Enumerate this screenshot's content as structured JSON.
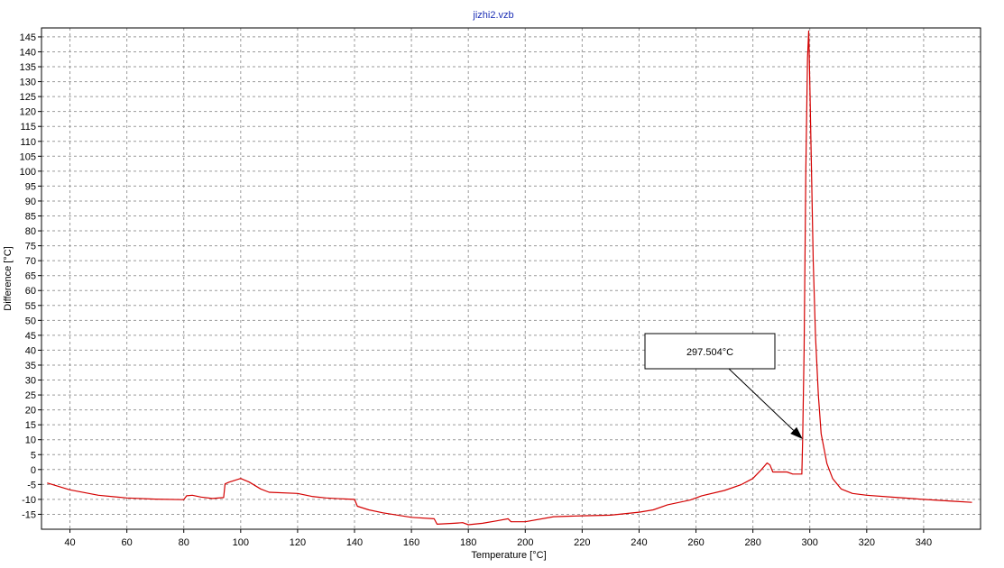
{
  "chart_data": {
    "type": "line",
    "title": "jizhi2.vzb",
    "xlabel": "Temperature [°C]",
    "ylabel": "Difference [°C]",
    "xlim": [
      30,
      360
    ],
    "ylim": [
      -20,
      148
    ],
    "x_ticks": [
      40,
      60,
      80,
      100,
      120,
      140,
      160,
      180,
      200,
      220,
      240,
      260,
      280,
      300,
      320,
      340
    ],
    "y_ticks": [
      -15,
      -10,
      -5,
      0,
      5,
      10,
      15,
      20,
      25,
      30,
      35,
      40,
      45,
      50,
      55,
      60,
      65,
      70,
      75,
      80,
      85,
      90,
      95,
      100,
      105,
      110,
      115,
      120,
      125,
      130,
      135,
      140,
      145
    ],
    "grid": true,
    "series": [
      {
        "color": "#d40000",
        "points": [
          [
            32,
            -4.5
          ],
          [
            40,
            -6.8
          ],
          [
            50,
            -8.6
          ],
          [
            60,
            -9.5
          ],
          [
            70,
            -9.9
          ],
          [
            80,
            -10.1
          ],
          [
            81,
            -8.8
          ],
          [
            83,
            -8.6
          ],
          [
            86,
            -9.2
          ],
          [
            90,
            -9.7
          ],
          [
            94,
            -9.4
          ],
          [
            94.5,
            -4.8
          ],
          [
            96,
            -4.2
          ],
          [
            100,
            -3.0
          ],
          [
            103,
            -4.2
          ],
          [
            107,
            -6.5
          ],
          [
            110,
            -7.6
          ],
          [
            120,
            -8.0
          ],
          [
            125,
            -9.0
          ],
          [
            130,
            -9.5
          ],
          [
            135,
            -9.8
          ],
          [
            140,
            -10.0
          ],
          [
            141,
            -12.3
          ],
          [
            145,
            -13.5
          ],
          [
            150,
            -14.5
          ],
          [
            160,
            -16.0
          ],
          [
            168,
            -16.5
          ],
          [
            169,
            -18.3
          ],
          [
            175,
            -18.0
          ],
          [
            178,
            -17.8
          ],
          [
            180,
            -18.5
          ],
          [
            185,
            -18.0
          ],
          [
            190,
            -17.2
          ],
          [
            194,
            -16.5
          ],
          [
            195,
            -17.5
          ],
          [
            200,
            -17.5
          ],
          [
            210,
            -15.8
          ],
          [
            220,
            -15.5
          ],
          [
            230,
            -15.3
          ],
          [
            240,
            -14.3
          ],
          [
            245,
            -13.5
          ],
          [
            250,
            -11.8
          ],
          [
            258,
            -10.2
          ],
          [
            262,
            -8.8
          ],
          [
            270,
            -7.0
          ],
          [
            276,
            -5.0
          ],
          [
            280,
            -3.0
          ],
          [
            283,
            0.0
          ],
          [
            285,
            2.2
          ],
          [
            286,
            1.5
          ],
          [
            287,
            -0.8
          ],
          [
            290,
            -0.8
          ],
          [
            292,
            -0.8
          ],
          [
            294,
            -1.5
          ],
          [
            296,
            -1.5
          ],
          [
            297.2,
            -1.5
          ],
          [
            297.5,
            10.2
          ],
          [
            298,
            40.0
          ],
          [
            298.6,
            100.0
          ],
          [
            299.2,
            138.0
          ],
          [
            299.6,
            147.0
          ],
          [
            300,
            130.0
          ],
          [
            300.6,
            100.0
          ],
          [
            301.2,
            70.0
          ],
          [
            302,
            45.0
          ],
          [
            303,
            25.0
          ],
          [
            304,
            12.0
          ],
          [
            306,
            2.0
          ],
          [
            308,
            -3.0
          ],
          [
            311,
            -6.5
          ],
          [
            315,
            -8.0
          ],
          [
            320,
            -8.6
          ],
          [
            330,
            -9.3
          ],
          [
            340,
            -10.0
          ],
          [
            350,
            -10.6
          ],
          [
            357,
            -11.0
          ]
        ]
      }
    ],
    "annotations": [
      {
        "text": "297.504°C",
        "x": 297.5,
        "y": 10.2
      }
    ]
  }
}
